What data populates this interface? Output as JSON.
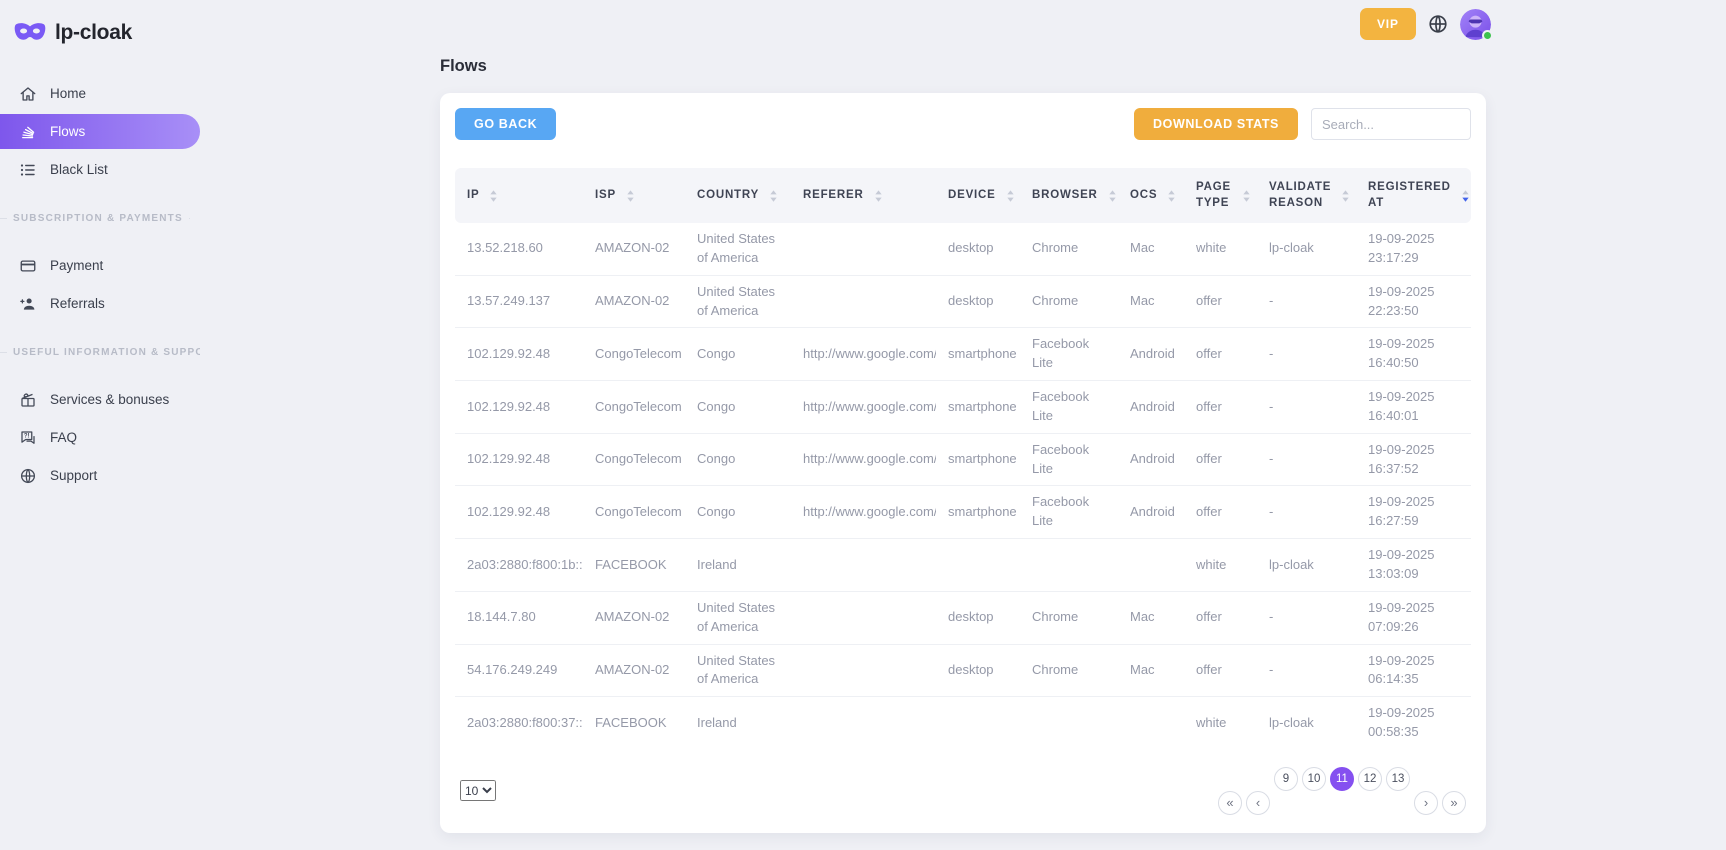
{
  "brand": {
    "name": "lp-cloak"
  },
  "sidebar": {
    "nav": [
      {
        "label": "Home",
        "icon": "home-icon",
        "active": false
      },
      {
        "label": "Flows",
        "icon": "stack-icon",
        "active": true
      },
      {
        "label": "Black List",
        "icon": "list-icon",
        "active": false
      }
    ],
    "sections": [
      {
        "title": "SUBSCRIPTION & PAYMENTS",
        "items": [
          {
            "label": "Payment",
            "icon": "credit-card-icon"
          },
          {
            "label": "Referrals",
            "icon": "user-plus-icon"
          }
        ]
      },
      {
        "title": "USEFUL INFORMATION & SUPPORT",
        "items": [
          {
            "label": "Services & bonuses",
            "icon": "gift-icon"
          },
          {
            "label": "FAQ",
            "icon": "chat-question-icon"
          },
          {
            "label": "Support",
            "icon": "globe-icon"
          }
        ]
      }
    ]
  },
  "topbar": {
    "vip_label": "VIP",
    "language_icon": "globe-icon",
    "avatar": "masked-user-avatar",
    "status": "online"
  },
  "main": {
    "page_title": "Flows",
    "go_back_label": "GO BACK",
    "download_stats_label": "DOWNLOAD STATS",
    "search_placeholder": "Search..."
  },
  "table": {
    "columns": [
      {
        "key": "ip",
        "label": "IP"
      },
      {
        "key": "isp",
        "label": "ISP"
      },
      {
        "key": "country",
        "label": "COUNTRY"
      },
      {
        "key": "referer",
        "label": "REFERER"
      },
      {
        "key": "device",
        "label": "DEVICE"
      },
      {
        "key": "browser",
        "label": "BROWSER"
      },
      {
        "key": "ocs",
        "label": "OCS"
      },
      {
        "key": "page_type",
        "label": "PAGE TYPE"
      },
      {
        "key": "validate_reason",
        "label": "VALIDATE REASON"
      },
      {
        "key": "registered_at",
        "label": "REGISTERED AT",
        "sorted": "desc"
      }
    ],
    "rows": [
      {
        "ip": "13.52.218.60",
        "isp": "AMAZON-02",
        "country": "United States of America",
        "referer": "",
        "device": "desktop",
        "browser": "Chrome",
        "ocs": "Mac",
        "page_type": "white",
        "validate_reason": "lp-cloak",
        "registered_at": "19-09-2025 23:17:29"
      },
      {
        "ip": "13.57.249.137",
        "isp": "AMAZON-02",
        "country": "United States of America",
        "referer": "",
        "device": "desktop",
        "browser": "Chrome",
        "ocs": "Mac",
        "page_type": "offer",
        "validate_reason": "-",
        "registered_at": "19-09-2025 22:23:50"
      },
      {
        "ip": "102.129.92.48",
        "isp": "CongoTelecom",
        "country": "Congo",
        "referer": "http://www.google.com/",
        "device": "smartphone",
        "browser": "Facebook Lite",
        "ocs": "Android",
        "page_type": "offer",
        "validate_reason": "-",
        "registered_at": "19-09-2025 16:40:50"
      },
      {
        "ip": "102.129.92.48",
        "isp": "CongoTelecom",
        "country": "Congo",
        "referer": "http://www.google.com/",
        "device": "smartphone",
        "browser": "Facebook Lite",
        "ocs": "Android",
        "page_type": "offer",
        "validate_reason": "-",
        "registered_at": "19-09-2025 16:40:01"
      },
      {
        "ip": "102.129.92.48",
        "isp": "CongoTelecom",
        "country": "Congo",
        "referer": "http://www.google.com/",
        "device": "smartphone",
        "browser": "Facebook Lite",
        "ocs": "Android",
        "page_type": "offer",
        "validate_reason": "-",
        "registered_at": "19-09-2025 16:37:52"
      },
      {
        "ip": "102.129.92.48",
        "isp": "CongoTelecom",
        "country": "Congo",
        "referer": "http://www.google.com/",
        "device": "smartphone",
        "browser": "Facebook Lite",
        "ocs": "Android",
        "page_type": "offer",
        "validate_reason": "-",
        "registered_at": "19-09-2025 16:27:59"
      },
      {
        "ip": "2a03:2880:f800:1b::",
        "isp": "FACEBOOK",
        "country": "Ireland",
        "referer": "",
        "device": "",
        "browser": "",
        "ocs": "",
        "page_type": "white",
        "validate_reason": "lp-cloak",
        "registered_at": "19-09-2025 13:03:09"
      },
      {
        "ip": "18.144.7.80",
        "isp": "AMAZON-02",
        "country": "United States of America",
        "referer": "",
        "device": "desktop",
        "browser": "Chrome",
        "ocs": "Mac",
        "page_type": "offer",
        "validate_reason": "-",
        "registered_at": "19-09-2025 07:09:26"
      },
      {
        "ip": "54.176.249.249",
        "isp": "AMAZON-02",
        "country": "United States of America",
        "referer": "",
        "device": "desktop",
        "browser": "Chrome",
        "ocs": "Mac",
        "page_type": "offer",
        "validate_reason": "-",
        "registered_at": "19-09-2025 06:14:35"
      },
      {
        "ip": "2a03:2880:f800:37::",
        "isp": "FACEBOOK",
        "country": "Ireland",
        "referer": "",
        "device": "",
        "browser": "",
        "ocs": "",
        "page_type": "white",
        "validate_reason": "lp-cloak",
        "registered_at": "19-09-2025 00:58:35"
      }
    ]
  },
  "pagination": {
    "per_page": "10",
    "active_page": "11",
    "buttons": [
      {
        "label": "«",
        "kind": "first",
        "active": false
      },
      {
        "label": "‹",
        "kind": "prev",
        "active": false
      },
      {
        "label": "9",
        "kind": "page",
        "active": false
      },
      {
        "label": "10",
        "kind": "page",
        "active": false
      },
      {
        "label": "11",
        "kind": "page",
        "active": true
      },
      {
        "label": "12",
        "kind": "page",
        "active": false
      },
      {
        "label": "13",
        "kind": "page",
        "active": false
      },
      {
        "label": "›",
        "kind": "next",
        "active": false
      },
      {
        "label": "»",
        "kind": "last",
        "active": false
      }
    ]
  },
  "colors": {
    "page_background": "#eff0f5",
    "sidebar_active_gradient_start": "#7e57ec",
    "sidebar_active_gradient_end": "#a88ff7",
    "vip_button": "#f3b440",
    "go_back_button": "#58a7f3",
    "download_stats_button": "#f0ad3d",
    "active_page_button": "#8550f0",
    "sorted_arrow": "#4263eb",
    "online_status": "#3ec24e",
    "logo_purple": "#7a5af5"
  },
  "icons": {
    "logo": "mask-icon",
    "sort": "sort-arrows-icon",
    "language": "globe-icon",
    "avatar_status": "online-dot"
  }
}
